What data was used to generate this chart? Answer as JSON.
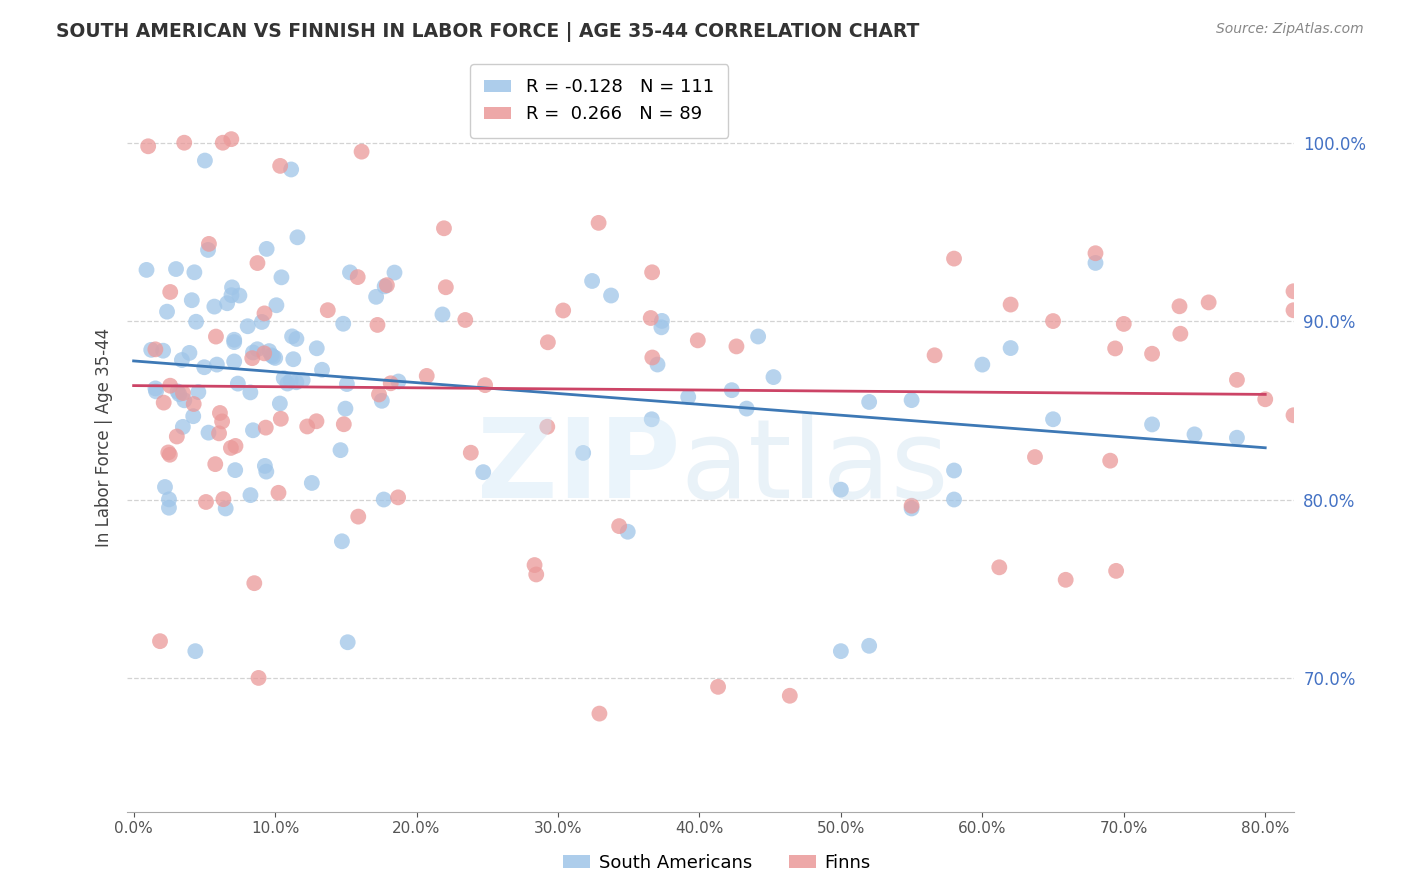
{
  "title": "SOUTH AMERICAN VS FINNISH IN LABOR FORCE | AGE 35-44 CORRELATION CHART",
  "source": "Source: ZipAtlas.com",
  "ylabel": "In Labor Force | Age 35-44",
  "xlim": [
    -0.005,
    0.82
  ],
  "ylim": [
    0.625,
    1.045
  ],
  "xticks": [
    0.0,
    0.1,
    0.2,
    0.3,
    0.4,
    0.5,
    0.6,
    0.7,
    0.8
  ],
  "yticks": [
    0.7,
    0.8,
    0.9,
    1.0
  ],
  "legend_blue_r": "-0.128",
  "legend_blue_n": "111",
  "legend_pink_r": "0.266",
  "legend_pink_n": "89",
  "blue_color": "#9fc5e8",
  "pink_color": "#ea9999",
  "blue_line_color": "#3d78b5",
  "pink_line_color": "#cc4466",
  "background_color": "#ffffff",
  "grid_color": "#cccccc",
  "title_fontsize": 13.5,
  "source_fontsize": 10,
  "tick_labelsize": 12,
  "legend_fontsize": 13,
  "scatter_size": 130,
  "scatter_alpha": 0.75
}
